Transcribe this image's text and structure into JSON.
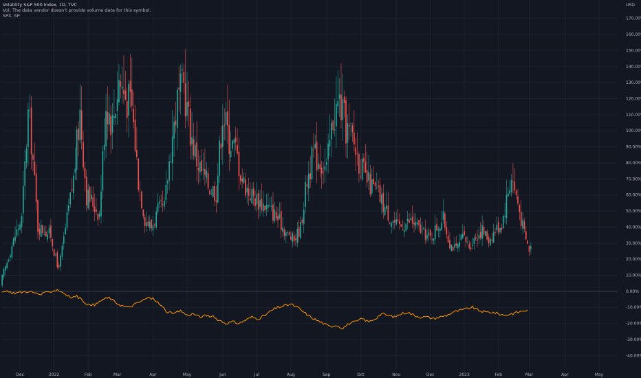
{
  "legend": {
    "line1": "Volatility S&P 500 Index, 1D, TVC",
    "line2": "Vol: The data vendor doesn't provide volume data for this symbol.",
    "line3": "SPX, SP"
  },
  "chart_data": {
    "type": "candlestick",
    "price_axis_unit": "USD",
    "y_ticks": [
      "170.00%",
      "160.00%",
      "150.00%",
      "140.00%",
      "130.00%",
      "120.00%",
      "110.00%",
      "100.00%",
      "90.00%",
      "80.00%",
      "70.00%",
      "60.00%",
      "50.00%",
      "40.00%",
      "30.00%",
      "20.00%",
      "10.00%",
      "0.00%",
      "-10.00%",
      "-20.00%",
      "-30.00%",
      "-40.00%"
    ],
    "y_tick_values": [
      170,
      160,
      150,
      140,
      130,
      120,
      110,
      100,
      90,
      80,
      70,
      60,
      50,
      40,
      30,
      20,
      10,
      0,
      -10,
      -20,
      -30,
      -40
    ],
    "ylim": [
      -42,
      178
    ],
    "x_ticks": [
      "Dec",
      "2022",
      "Feb",
      "Mar",
      "Apr",
      "May",
      "Jun",
      "Jul",
      "Aug",
      "Sep",
      "Oct",
      "Nov",
      "Dec",
      "2023",
      "Feb",
      "Mar",
      "Apr",
      "May"
    ],
    "x_tick_index": [
      11,
      32,
      53,
      71,
      93,
      114,
      136,
      157,
      178,
      200,
      221,
      243,
      264,
      285,
      306,
      325,
      347,
      368
    ],
    "candle_up_color": "#26a69a",
    "candle_down_color": "#ef5350",
    "comparison_line_color": "#ff9800",
    "series": [
      {
        "name": "Volatility S&P 500 Index",
        "anchors": [
          [
            0,
            8
          ],
          [
            4,
            22
          ],
          [
            8,
            35
          ],
          [
            12,
            45
          ],
          [
            16,
            110
          ],
          [
            18,
            95
          ],
          [
            22,
            40
          ],
          [
            26,
            38
          ],
          [
            30,
            35
          ],
          [
            34,
            15
          ],
          [
            36,
            20
          ],
          [
            40,
            45
          ],
          [
            44,
            70
          ],
          [
            48,
            112
          ],
          [
            52,
            60
          ],
          [
            56,
            55
          ],
          [
            60,
            48
          ],
          [
            64,
            118
          ],
          [
            68,
            105
          ],
          [
            72,
            132
          ],
          [
            76,
            122
          ],
          [
            80,
            115
          ],
          [
            84,
            70
          ],
          [
            88,
            45
          ],
          [
            92,
            40
          ],
          [
            96,
            50
          ],
          [
            100,
            52
          ],
          [
            104,
            90
          ],
          [
            108,
            118
          ],
          [
            112,
            128
          ],
          [
            116,
            100
          ],
          [
            120,
            82
          ],
          [
            124,
            72
          ],
          [
            128,
            65
          ],
          [
            132,
            62
          ],
          [
            136,
            112
          ],
          [
            140,
            95
          ],
          [
            144,
            88
          ],
          [
            148,
            70
          ],
          [
            152,
            62
          ],
          [
            156,
            58
          ],
          [
            160,
            55
          ],
          [
            164,
            52
          ],
          [
            168,
            48
          ],
          [
            172,
            42
          ],
          [
            176,
            35
          ],
          [
            180,
            32
          ],
          [
            184,
            40
          ],
          [
            188,
            70
          ],
          [
            192,
            85
          ],
          [
            196,
            82
          ],
          [
            200,
            76
          ],
          [
            204,
            108
          ],
          [
            208,
            118
          ],
          [
            212,
            102
          ],
          [
            216,
            95
          ],
          [
            220,
            82
          ],
          [
            224,
            70
          ],
          [
            228,
            65
          ],
          [
            232,
            60
          ],
          [
            236,
            52
          ],
          [
            240,
            45
          ],
          [
            244,
            40
          ],
          [
            248,
            42
          ],
          [
            252,
            44
          ],
          [
            256,
            40
          ],
          [
            260,
            36
          ],
          [
            264,
            33
          ],
          [
            268,
            40
          ],
          [
            272,
            45
          ],
          [
            276,
            30
          ],
          [
            280,
            26
          ],
          [
            284,
            34
          ],
          [
            288,
            28
          ],
          [
            292,
            34
          ],
          [
            296,
            38
          ],
          [
            300,
            32
          ],
          [
            304,
            38
          ],
          [
            308,
            42
          ],
          [
            312,
            62
          ],
          [
            314,
            72
          ],
          [
            318,
            55
          ],
          [
            320,
            45
          ],
          [
            323,
            32
          ],
          [
            325,
            26
          ],
          [
            326,
            28
          ]
        ],
        "first_close": 2,
        "last_close": 28
      },
      {
        "name": "SPX, SP",
        "anchors": [
          [
            0,
            0
          ],
          [
            8,
            -1
          ],
          [
            16,
            0
          ],
          [
            24,
            -2
          ],
          [
            30,
            0
          ],
          [
            34,
            1
          ],
          [
            38,
            -1
          ],
          [
            42,
            -4
          ],
          [
            46,
            -3
          ],
          [
            50,
            -6
          ],
          [
            54,
            -9
          ],
          [
            58,
            -8
          ],
          [
            62,
            -5
          ],
          [
            66,
            -4
          ],
          [
            70,
            -7
          ],
          [
            74,
            -9
          ],
          [
            78,
            -10
          ],
          [
            82,
            -8
          ],
          [
            86,
            -6
          ],
          [
            90,
            -4
          ],
          [
            94,
            -5
          ],
          [
            98,
            -9
          ],
          [
            102,
            -13
          ],
          [
            106,
            -14
          ],
          [
            110,
            -12
          ],
          [
            114,
            -15
          ],
          [
            118,
            -14
          ],
          [
            122,
            -16
          ],
          [
            126,
            -15
          ],
          [
            130,
            -16
          ],
          [
            134,
            -18
          ],
          [
            138,
            -20
          ],
          [
            142,
            -19
          ],
          [
            146,
            -20
          ],
          [
            150,
            -18
          ],
          [
            154,
            -16
          ],
          [
            158,
            -17
          ],
          [
            162,
            -15
          ],
          [
            166,
            -12
          ],
          [
            170,
            -10
          ],
          [
            174,
            -9
          ],
          [
            178,
            -8
          ],
          [
            182,
            -10
          ],
          [
            186,
            -13
          ],
          [
            190,
            -16
          ],
          [
            194,
            -18
          ],
          [
            198,
            -20
          ],
          [
            202,
            -22
          ],
          [
            206,
            -21
          ],
          [
            210,
            -23
          ],
          [
            214,
            -20
          ],
          [
            218,
            -19
          ],
          [
            222,
            -17
          ],
          [
            226,
            -19
          ],
          [
            230,
            -17
          ],
          [
            234,
            -14
          ],
          [
            238,
            -15
          ],
          [
            242,
            -16
          ],
          [
            246,
            -14
          ],
          [
            250,
            -13
          ],
          [
            254,
            -15
          ],
          [
            258,
            -16
          ],
          [
            262,
            -16
          ],
          [
            266,
            -17
          ],
          [
            270,
            -16
          ],
          [
            274,
            -15
          ],
          [
            278,
            -13
          ],
          [
            282,
            -12
          ],
          [
            286,
            -11
          ],
          [
            290,
            -10
          ],
          [
            294,
            -12
          ],
          [
            298,
            -13
          ],
          [
            302,
            -13
          ],
          [
            306,
            -14
          ],
          [
            310,
            -15
          ],
          [
            314,
            -14
          ],
          [
            318,
            -13
          ],
          [
            322,
            -12
          ],
          [
            324,
            -12
          ]
        ]
      }
    ]
  }
}
